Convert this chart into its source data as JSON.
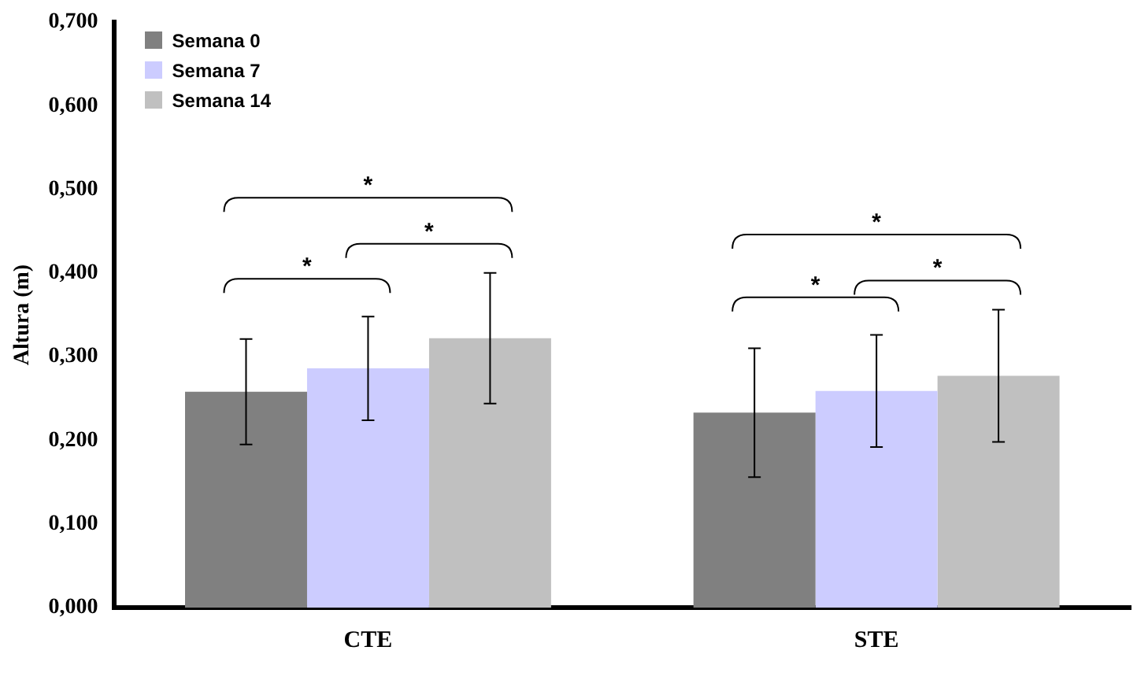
{
  "chart_data": {
    "type": "bar",
    "ylabel": "Altura (m)",
    "categories": [
      "CTE",
      "STE"
    ],
    "series": [
      {
        "name": "Semana 0",
        "color": "#808080",
        "values": [
          0.258,
          0.233
        ],
        "errors": [
          0.063,
          0.077
        ]
      },
      {
        "name": "Semana 7",
        "color": "#ccccff",
        "values": [
          0.286,
          0.259
        ],
        "errors": [
          0.062,
          0.067
        ]
      },
      {
        "name": "Semana 14",
        "color": "#c0c0c0",
        "values": [
          0.322,
          0.277
        ],
        "errors": [
          0.078,
          0.079
        ]
      }
    ],
    "ylim": [
      0,
      0.7
    ],
    "yticks": [
      {
        "value": 0,
        "label": "0,000"
      },
      {
        "value": 0.1,
        "label": "0,100"
      },
      {
        "value": 0.2,
        "label": "0,200"
      },
      {
        "value": 0.3,
        "label": "0,300"
      },
      {
        "value": 0.4,
        "label": "0,400"
      },
      {
        "value": 0.5,
        "label": "0,500"
      },
      {
        "value": 0.6,
        "label": "0,600"
      },
      {
        "value": 0.7,
        "label": "0,700"
      }
    ],
    "grid": false,
    "legend": "top left",
    "annotations": [
      "*",
      "*",
      "*",
      "*",
      "*",
      "*"
    ]
  }
}
